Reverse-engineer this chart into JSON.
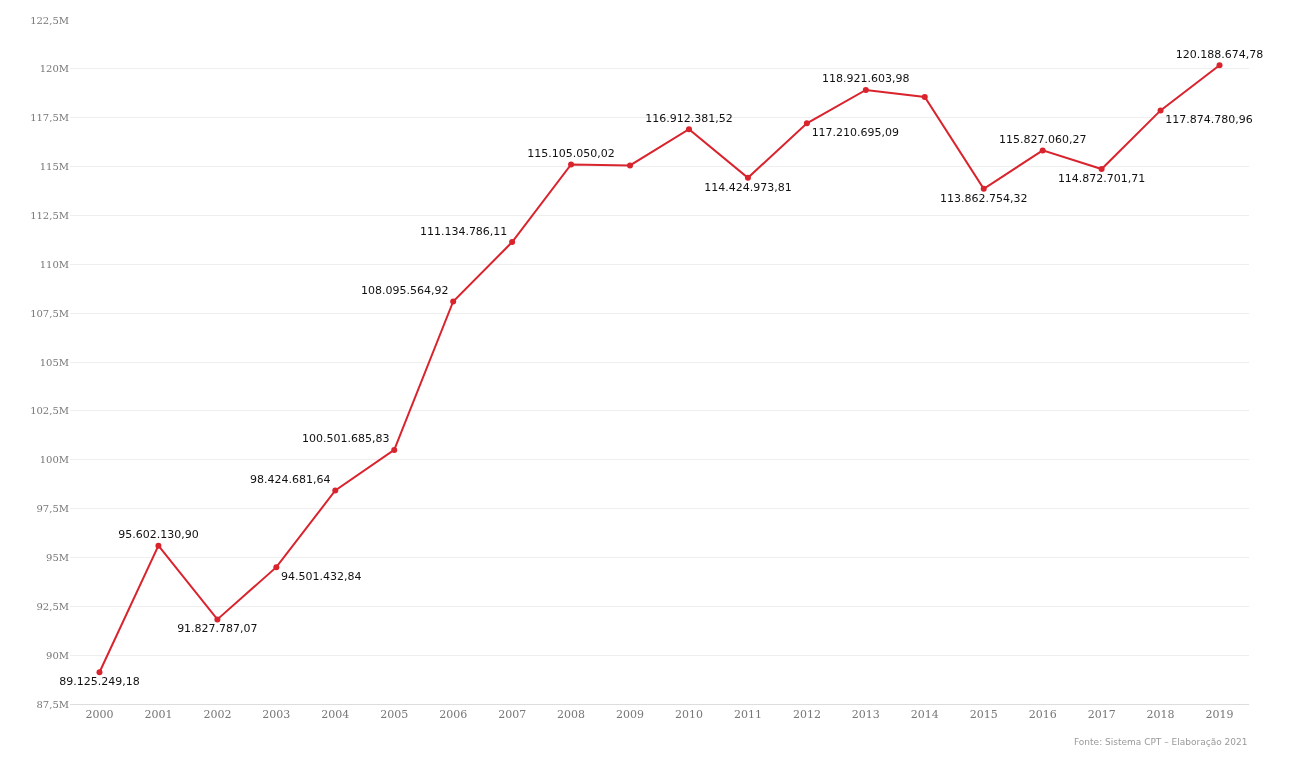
{
  "chart_data": {
    "type": "line",
    "categories": [
      "2000",
      "2001",
      "2002",
      "2003",
      "2004",
      "2005",
      "2006",
      "2007",
      "2008",
      "2009",
      "2010",
      "2011",
      "2012",
      "2013",
      "2014",
      "2015",
      "2016",
      "2017",
      "2018",
      "2019"
    ],
    "values": [
      89125249.18,
      95602130.9,
      91827787.07,
      94501432.84,
      98424681.64,
      100501685.83,
      108095564.92,
      111134786.11,
      115105050.02,
      115060000,
      116912381.52,
      114424973.81,
      117210695.09,
      118921603.98,
      118560000,
      113862754.32,
      115827060.27,
      114872701.71,
      117874780.96,
      120188674.78
    ],
    "value_labels": [
      "89.125.249,18",
      "95.602.130,90",
      "91.827.787,07",
      "94.501.432,84",
      "98.424.681,64",
      "100.501.685,83",
      "108.095.564,92",
      "111.134.786,11",
      "115.105.050,02",
      null,
      "116.912.381,52",
      "114.424.973,81",
      "117.210.695,09",
      "118.921.603,98",
      null,
      "113.862.754,32",
      "115.827.060,27",
      "114.872.701,71",
      "117.874.780,96",
      "120.188.674,78"
    ],
    "color": "#d9232d",
    "ylim": [
      87500000,
      122500000
    ],
    "yticks": [
      {
        "value": 87500000,
        "label": "87,5M"
      },
      {
        "value": 90000000,
        "label": "90M"
      },
      {
        "value": 92500000,
        "label": "92,5M"
      },
      {
        "value": 95000000,
        "label": "95M"
      },
      {
        "value": 97500000,
        "label": "97,5M"
      },
      {
        "value": 100000000,
        "label": "100M"
      },
      {
        "value": 102500000,
        "label": "102,5M"
      },
      {
        "value": 105000000,
        "label": "105M"
      },
      {
        "value": 107500000,
        "label": "107,5M"
      },
      {
        "value": 110000000,
        "label": "110M"
      },
      {
        "value": 112500000,
        "label": "112,5M"
      },
      {
        "value": 115000000,
        "label": "115M"
      },
      {
        "value": 117500000,
        "label": "117,5M"
      },
      {
        "value": 120000000,
        "label": "120M"
      },
      {
        "value": 122500000,
        "label": "122,5M"
      }
    ],
    "grid": "y",
    "marker": "circle",
    "annotations": [
      "Fonte: Sistema CPT – Elaboração 2021"
    ]
  }
}
